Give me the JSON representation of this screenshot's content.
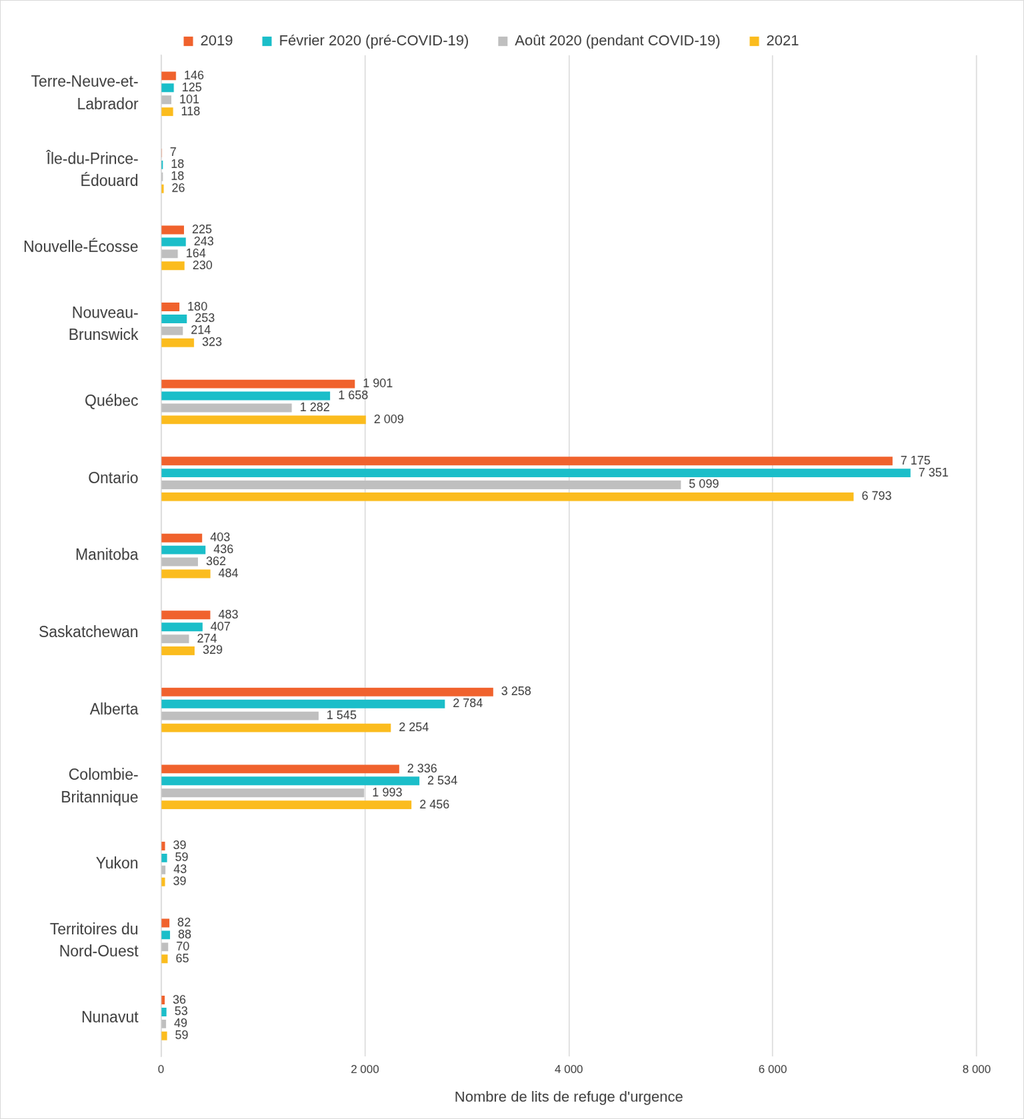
{
  "chart_data": {
    "type": "bar",
    "orientation": "horizontal",
    "x_label": "Nombre de lits de refuge d'urgence",
    "categories": [
      "Terre-Neuve-et-\nLabrador",
      "Île-du-Prince-\nÉdouard",
      "Nouvelle-Écosse",
      "Nouveau-\nBrunswick",
      "Québec",
      "Ontario",
      "Manitoba",
      "Saskatchewan",
      "Alberta",
      "Colombie-\nBritannique",
      "Yukon",
      "Territoires du\nNord-Ouest",
      "Nunavut"
    ],
    "series": [
      {
        "name": "2019",
        "color": "#F0622D",
        "values": [
          146,
          7,
          225,
          180,
          1901,
          7175,
          403,
          483,
          3258,
          2336,
          39,
          82,
          36
        ],
        "value_labels": [
          "146",
          "7",
          "225",
          "180",
          "1 901",
          "7 175",
          "403",
          "483",
          "3 258",
          "2 336",
          "39",
          "82",
          "36"
        ]
      },
      {
        "name": "Février 2020 (pré-COVID-19)",
        "color": "#1BBEC9",
        "values": [
          125,
          18,
          243,
          253,
          1658,
          7351,
          436,
          407,
          2784,
          2534,
          59,
          88,
          53
        ],
        "value_labels": [
          "125",
          "18",
          "243",
          "253",
          "1 658",
          "7 351",
          "436",
          "407",
          "2 784",
          "2 534",
          "59",
          "88",
          "53"
        ]
      },
      {
        "name": "Août 2020 (pendant COVID-19)",
        "color": "#BFBFBF",
        "values": [
          101,
          18,
          164,
          214,
          1282,
          5099,
          362,
          274,
          1545,
          1993,
          43,
          70,
          49
        ],
        "value_labels": [
          "101",
          "18",
          "164",
          "214",
          "1 282",
          "5 099",
          "362",
          "274",
          "1 545",
          "1 993",
          "43",
          "70",
          "49"
        ]
      },
      {
        "name": "2021",
        "color": "#FBBC1E",
        "values": [
          118,
          26,
          230,
          323,
          2009,
          6793,
          484,
          329,
          2254,
          2456,
          39,
          65,
          59
        ],
        "value_labels": [
          "118",
          "26",
          "230",
          "323",
          "2 009",
          "6 793",
          "484",
          "329",
          "2 254",
          "2 456",
          "39",
          "65",
          "59"
        ]
      }
    ],
    "xlim": [
      0,
      8000
    ],
    "xticks": [
      0,
      {
        "value": 2000,
        "label": "2 000"
      },
      {
        "value": 4000,
        "label": "4 000"
      },
      {
        "value": 6000,
        "label": "6 000"
      },
      {
        "value": 8000,
        "label": "8 000"
      }
    ],
    "grid": true,
    "legend": "top",
    "data_labels": true
  }
}
